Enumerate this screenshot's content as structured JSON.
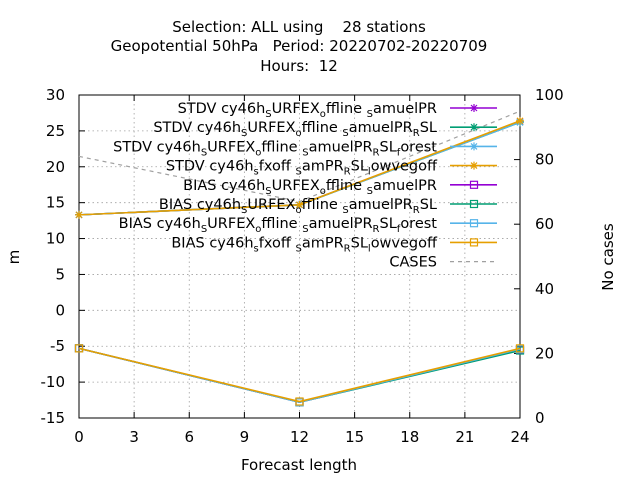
{
  "title_lines": [
    "Selection: ALL using    28 stations",
    "Geopotential 50hPa   Period: 20220702-20220709",
    "Hours:  12"
  ],
  "colors": {
    "purple": "#9400d3",
    "green": "#009e73",
    "skyblue": "#56b4e9",
    "orange": "#e69f00",
    "gray": "#a0a0a0"
  },
  "chart_data": {
    "type": "line",
    "xlabel": "Forecast length",
    "ylabel": "m",
    "y2label": "No cases",
    "x_ticks": [
      0,
      3,
      6,
      9,
      12,
      15,
      18,
      21,
      24
    ],
    "y_ticks": [
      -15,
      -10,
      -5,
      0,
      5,
      10,
      15,
      20,
      25,
      30
    ],
    "y2_ticks": [
      0,
      20,
      40,
      60,
      80,
      100
    ],
    "xlim": [
      0,
      24
    ],
    "ylim": [
      -15,
      30
    ],
    "y2lim": [
      0,
      100
    ],
    "grid": true,
    "legend_position": "top-right",
    "x": [
      0,
      12,
      24
    ],
    "series": [
      {
        "name": "STDV cy46h_SURFEX_offline_samuelPR",
        "legend": [
          [
            "STDV cy46h",
            ""
          ],
          [
            "S",
            "sub"
          ],
          [
            "URFEX",
            ""
          ],
          [
            "o",
            "sub"
          ],
          [
            "ffline ",
            ""
          ],
          [
            "S",
            "sub"
          ],
          [
            "amuelPR",
            ""
          ]
        ],
        "values": [
          13.3,
          14.7,
          26.3
        ],
        "color": "purple",
        "marker": "star",
        "axis": "y"
      },
      {
        "name": "STDV cy46h_SURFEX_offline_samuelPR_RSL",
        "legend": [
          [
            "STDV cy46h",
            ""
          ],
          [
            "S",
            "sub"
          ],
          [
            "URFEX",
            ""
          ],
          [
            "o",
            "sub"
          ],
          [
            "ffline ",
            ""
          ],
          [
            "S",
            "sub"
          ],
          [
            "amuelPR",
            ""
          ],
          [
            "R",
            "sub"
          ],
          [
            "SL",
            ""
          ]
        ],
        "values": [
          13.3,
          14.7,
          26.2
        ],
        "color": "green",
        "marker": "star",
        "axis": "y"
      },
      {
        "name": "STDV cy46h_SURFEX_offline_samuelPR_RSL_forest",
        "legend": [
          [
            "STDV cy46h",
            ""
          ],
          [
            "S",
            "sub"
          ],
          [
            "URFEX",
            ""
          ],
          [
            "o",
            "sub"
          ],
          [
            "ffline ",
            ""
          ],
          [
            "S",
            "sub"
          ],
          [
            "amuelPR",
            ""
          ],
          [
            "R",
            "sub"
          ],
          [
            "SL",
            ""
          ],
          [
            "f",
            "sub"
          ],
          [
            "orest",
            ""
          ]
        ],
        "values": [
          13.3,
          14.7,
          26.2
        ],
        "color": "skyblue",
        "marker": "star",
        "axis": "y"
      },
      {
        "name": "STDV cy46h_sfxoff_samPR_RSL_lowvegoff",
        "legend": [
          [
            "STDV cy46h",
            ""
          ],
          [
            "s",
            "sub"
          ],
          [
            "fxoff ",
            ""
          ],
          [
            "S",
            "sub"
          ],
          [
            "amPR",
            ""
          ],
          [
            "R",
            "sub"
          ],
          [
            "SL",
            ""
          ],
          [
            "l",
            "sub"
          ],
          [
            "owvegoff",
            ""
          ]
        ],
        "values": [
          13.3,
          14.7,
          26.4
        ],
        "color": "orange",
        "marker": "star",
        "axis": "y"
      },
      {
        "name": "BIAS cy46h_SURFEX_offline_samuelPR",
        "legend": [
          [
            "BIAS cy46h",
            ""
          ],
          [
            "S",
            "sub"
          ],
          [
            "URFEX",
            ""
          ],
          [
            "o",
            "sub"
          ],
          [
            "ffline ",
            ""
          ],
          [
            "S",
            "sub"
          ],
          [
            "amuelPR",
            ""
          ]
        ],
        "values": [
          -5.3,
          -12.8,
          -5.5
        ],
        "color": "purple",
        "marker": "square",
        "axis": "y"
      },
      {
        "name": "BIAS cy46h_SURFEX_offline_samuelPR_RSL",
        "legend": [
          [
            "BIAS cy46h",
            ""
          ],
          [
            "S",
            "sub"
          ],
          [
            "URFEX",
            ""
          ],
          [
            "o",
            "sub"
          ],
          [
            "ffline ",
            ""
          ],
          [
            "S",
            "sub"
          ],
          [
            "amuelPR",
            ""
          ],
          [
            "R",
            "sub"
          ],
          [
            "SL",
            ""
          ]
        ],
        "values": [
          -5.3,
          -12.8,
          -5.6
        ],
        "color": "green",
        "marker": "square",
        "axis": "y"
      },
      {
        "name": "BIAS cy46h_SURFEX_offline_samuelPR_RSL_forest",
        "legend": [
          [
            "BIAS cy46h",
            ""
          ],
          [
            "S",
            "sub"
          ],
          [
            "URFEX",
            ""
          ],
          [
            "o",
            "sub"
          ],
          [
            "ffline ",
            ""
          ],
          [
            "S",
            "sub"
          ],
          [
            "amuelPR",
            ""
          ],
          [
            "R",
            "sub"
          ],
          [
            "SL",
            ""
          ],
          [
            "f",
            "sub"
          ],
          [
            "orest",
            ""
          ]
        ],
        "values": [
          -5.3,
          -12.8,
          -5.4
        ],
        "color": "skyblue",
        "marker": "square",
        "axis": "y"
      },
      {
        "name": "BIAS cy46h_sfxoff_samPR_RSL_lowvegoff",
        "legend": [
          [
            "BIAS cy46h",
            ""
          ],
          [
            "s",
            "sub"
          ],
          [
            "fxoff ",
            ""
          ],
          [
            "S",
            "sub"
          ],
          [
            "amPR",
            ""
          ],
          [
            "R",
            "sub"
          ],
          [
            "SL",
            ""
          ],
          [
            "l",
            "sub"
          ],
          [
            "owvegoff",
            ""
          ]
        ],
        "values": [
          -5.3,
          -12.7,
          -5.3
        ],
        "color": "orange",
        "marker": "square",
        "axis": "y"
      },
      {
        "name": "CASES",
        "legend": [
          [
            "CASES",
            ""
          ]
        ],
        "values": [
          81,
          67,
          95
        ],
        "color": "gray",
        "marker": "none",
        "dashed": true,
        "axis": "y2"
      }
    ]
  }
}
